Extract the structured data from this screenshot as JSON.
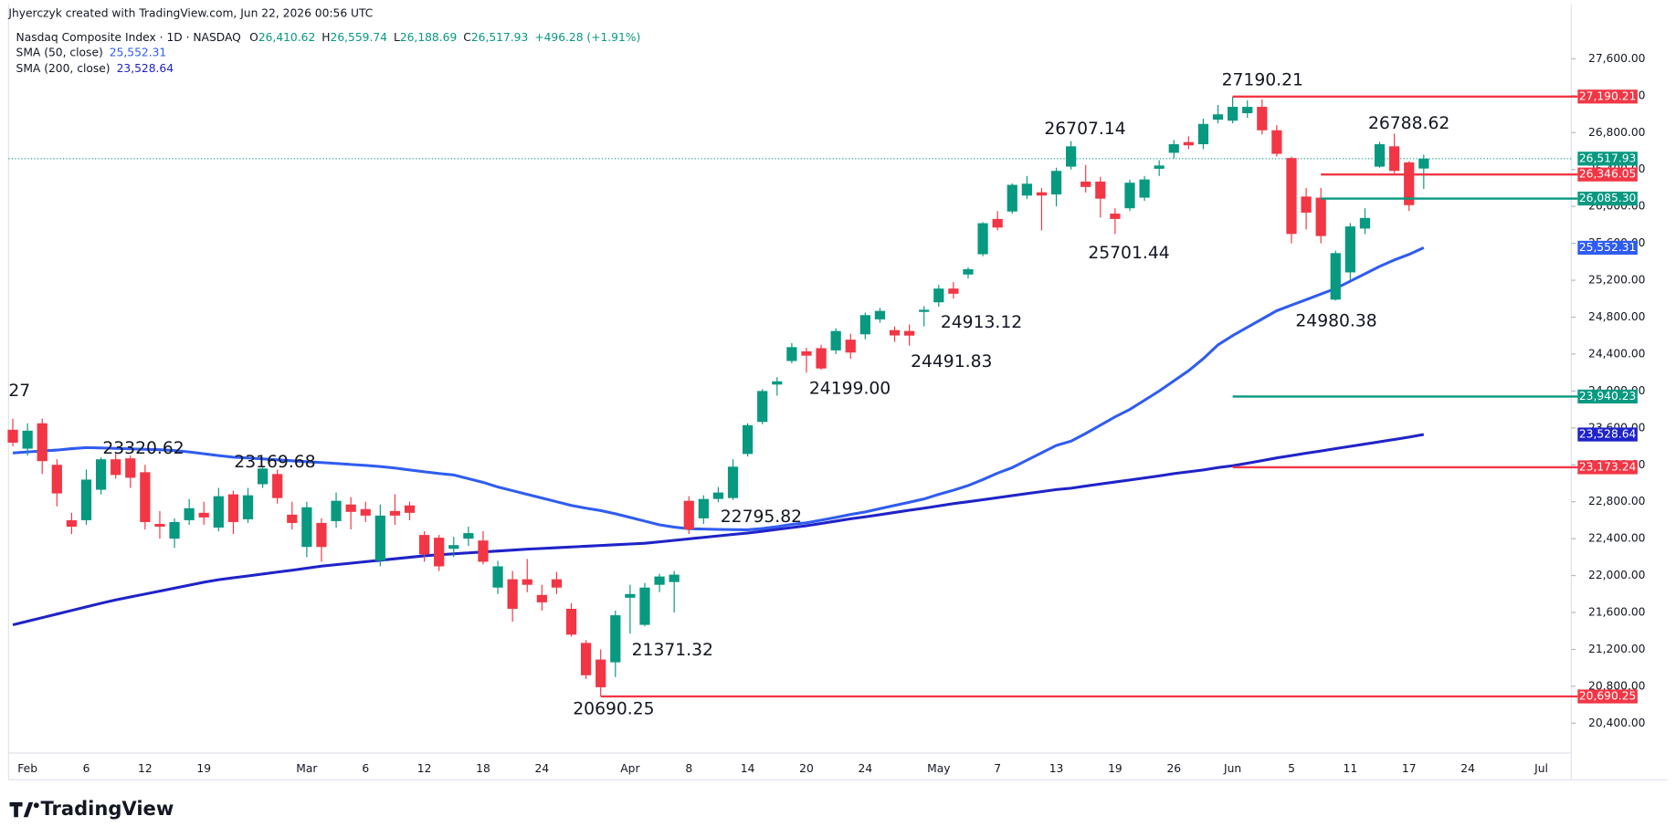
{
  "credit": "Jhyerczyk created with TradingView.com, Jun 22, 2026 00:56 UTC",
  "legend": {
    "symbol": "Nasdaq Composite Index · 1D · NASDAQ",
    "ohlc": [
      {
        "label": "O",
        "value": "26,410.62"
      },
      {
        "label": "H",
        "value": "26,559.74"
      },
      {
        "label": "L",
        "value": "26,188.69"
      },
      {
        "label": "C",
        "value": "26,517.93"
      }
    ],
    "change": "+496.28 (+1.91%)",
    "indicators": [
      {
        "name": "SMA (50, close)",
        "value": "25,552.31"
      },
      {
        "name": "SMA (200, close)",
        "value": "23,528.64"
      }
    ]
  },
  "footer": "TradingView",
  "chart_data": {
    "type": "candlestick",
    "categories": [
      null,
      "Feb",
      null,
      null,
      null,
      "6",
      null,
      null,
      null,
      "12",
      null,
      null,
      null,
      "19",
      null,
      null,
      null,
      null,
      null,
      null,
      "Mar",
      null,
      null,
      null,
      "6",
      null,
      null,
      null,
      "12",
      null,
      null,
      null,
      "18",
      null,
      null,
      null,
      "24",
      null,
      null,
      null,
      null,
      null,
      "Apr",
      null,
      null,
      null,
      "8",
      null,
      null,
      null,
      "14",
      null,
      null,
      null,
      "20",
      null,
      null,
      null,
      "24",
      null,
      null,
      null,
      null,
      "May",
      null,
      null,
      null,
      "7",
      null,
      null,
      null,
      "13",
      null,
      null,
      null,
      "19",
      null,
      null,
      null,
      "26",
      null,
      null,
      null,
      "Jun",
      null,
      null,
      null,
      "5",
      null,
      null,
      null,
      "11",
      null,
      null,
      null,
      "17",
      null,
      null,
      null,
      "24",
      null,
      null,
      null,
      null,
      "Jul"
    ],
    "up_color": "#089981",
    "down_color": "#f23645",
    "open": [
      23580,
      23375,
      23650,
      23200,
      22600,
      22600,
      22930,
      23260,
      23270,
      23120,
      22560,
      22400,
      22600,
      22680,
      22520,
      22880,
      22610,
      22990,
      23100,
      22660,
      22310,
      22570,
      22590,
      22770,
      22720,
      22160,
      22700,
      22760,
      22440,
      22410,
      22290,
      22400,
      22380,
      21870,
      21960,
      21960,
      21790,
      21960,
      21640,
      21270,
      21090,
      21060,
      21760,
      21466,
      21900,
      21930,
      22810,
      22620,
      22830,
      22840,
      23318,
      23665,
      24070,
      24325,
      24430,
      24464,
      24440,
      24556,
      24614,
      24776,
      24660,
      24650,
      24857,
      24961,
      25110,
      25262,
      25482,
      25864,
      25945,
      26118,
      26153,
      26130,
      26431,
      26269,
      26269,
      25922,
      25980,
      26095,
      26408,
      26581,
      26697,
      26674,
      26940,
      26929,
      27010,
      27079,
      26825,
      26524,
      26107,
      26095,
      24990,
      25285,
      25760,
      26431,
      26651,
      26477,
      26410.62,
      null,
      null,
      null,
      null,
      null,
      null,
      null,
      null
    ],
    "high": [
      23700,
      23650,
      23700,
      23260,
      22680,
      23150,
      23280,
      23320.62,
      23300,
      23200,
      22700,
      22620,
      22830,
      22800,
      22950,
      22920,
      22950,
      23169.68,
      23150,
      22800,
      22800,
      22620,
      22900,
      22850,
      22800,
      22770,
      22880,
      22800,
      22480,
      22440,
      22420,
      22530,
      22480,
      22160,
      22050,
      22180,
      21900,
      22040,
      21700,
      21300,
      21200,
      21620,
      21900,
      21920,
      22020,
      22050,
      22860,
      22870,
      22960,
      23260,
      23650,
      24020,
      24150,
      24520,
      24470,
      24500,
      24680,
      24620,
      24850,
      24900,
      24700,
      24720,
      24920,
      25150,
      25180,
      25340,
      25830,
      25950,
      26250,
      26330,
      26200,
      26420,
      26707.14,
      26450,
      26320,
      25980,
      26290,
      26330,
      26500,
      26720,
      26760,
      26950,
      27100,
      27190.21,
      27150,
      27160,
      26880,
      26540,
      26200,
      26200,
      25520,
      25820,
      25980,
      26700,
      26788.62,
      26490,
      26559.74,
      null,
      null,
      null,
      null,
      null,
      null,
      null,
      null
    ],
    "low": [
      23400,
      23300,
      23100,
      22750,
      22450,
      22550,
      22880,
      23050,
      22950,
      22500,
      22400,
      22300,
      22550,
      22550,
      22480,
      22450,
      22570,
      22950,
      22780,
      22500,
      22200,
      22150,
      22520,
      22500,
      22580,
      22100,
      22550,
      22600,
      22150,
      22050,
      22200,
      22320,
      22120,
      21800,
      21500,
      21820,
      21620,
      21800,
      21340,
      20880,
      20690.25,
      20900,
      21371.32,
      21450,
      21820,
      21600,
      22450,
      22560,
      22795.82,
      22820,
      23290,
      23640,
      23950,
      24300,
      24199,
      24230,
      24400,
      24350,
      24560,
      24740,
      24530,
      24491.83,
      24700,
      24913.12,
      25000,
      25220,
      25460,
      25740,
      25920,
      26080,
      25740,
      26000,
      26400,
      26150,
      25880,
      25701.44,
      25950,
      26060,
      26330,
      26520,
      26620,
      26620,
      26900,
      26900,
      26960,
      26780,
      26540,
      25600,
      25750,
      25600,
      24980.38,
      25200,
      25700,
      26420,
      26360,
      25950,
      26188.69,
      null,
      null,
      null,
      null,
      null,
      null,
      null,
      null
    ],
    "close": [
      23440,
      23570,
      23240,
      22890,
      22530,
      23040,
      23260,
      23090,
      23060,
      22580,
      22530,
      22580,
      22730,
      22630,
      22860,
      22580,
      22870,
      23160,
      22840,
      22570,
      22740,
      22310,
      22810,
      22690,
      22650,
      22650,
      22650,
      22680,
      22230,
      22100,
      22330,
      22460,
      22150,
      22100,
      21640,
      21900,
      21710,
      21870,
      21360,
      20920,
      20790,
      21570,
      21800,
      21870,
      21990,
      22010,
      22500,
      22830,
      22900,
      23180,
      23630,
      24000,
      24105,
      24475,
      24383,
      24244,
      24650,
      24417,
      24822,
      24868,
      24602,
      24600,
      24880,
      25110,
      25054,
      25320,
      25818,
      25771,
      26234,
      26246,
      26118,
      26385,
      26651,
      26211,
      26084,
      25864,
      26257,
      26292,
      26443,
      26674,
      26662,
      26894,
      26998,
      27079,
      27079,
      26825,
      26570,
      25702,
      25933,
      25679,
      25494,
      25783,
      25875,
      26674,
      26385,
      26014,
      26517.93,
      null,
      null,
      null,
      null,
      null,
      null,
      null,
      null
    ],
    "series": [
      {
        "name": "SMA (50, close)",
        "color": "#2f5cf0",
        "label": "25,552.31",
        "values": [
          23329,
          23340,
          23350,
          23360,
          23375,
          23387,
          23383,
          23378,
          23373,
          23368,
          23364,
          23355,
          23340,
          23320,
          23300,
          23283,
          23274,
          23264,
          23254,
          23244,
          23234,
          23225,
          23215,
          23204,
          23194,
          23182,
          23165,
          23145,
          23125,
          23106,
          23090,
          23050,
          23010,
          22960,
          22920,
          22880,
          22840,
          22800,
          22760,
          22730,
          22704,
          22670,
          22630,
          22590,
          22550,
          22525,
          22508,
          22504,
          22500,
          22498,
          22496,
          22510,
          22530,
          22555,
          22572,
          22600,
          22630,
          22662,
          22690,
          22725,
          22760,
          22795,
          22830,
          22880,
          22925,
          22975,
          23040,
          23110,
          23170,
          23250,
          23330,
          23410,
          23456,
          23540,
          23630,
          23720,
          23800,
          23900,
          24000,
          24110,
          24220,
          24350,
          24500,
          24600,
          24690,
          24780,
          24870,
          24930,
          24990,
          25050,
          25110,
          25190,
          25270,
          25350,
          25420,
          25480,
          25552.31,
          null,
          null,
          null,
          null,
          null,
          null,
          null,
          null
        ]
      },
      {
        "name": "SMA (200, close)",
        "color": "#1f23c8",
        "label": "23,528.64",
        "values": [
          21466,
          21505,
          21544,
          21583,
          21622,
          21661,
          21700,
          21736,
          21768,
          21800,
          21832,
          21864,
          21896,
          21928,
          21955,
          21976,
          21996,
          22017,
          22038,
          22058,
          22080,
          22102,
          22118,
          22134,
          22150,
          22166,
          22182,
          22198,
          22214,
          22226,
          22236,
          22246,
          22256,
          22266,
          22276,
          22286,
          22294,
          22302,
          22310,
          22318,
          22326,
          22334,
          22342,
          22350,
          22366,
          22382,
          22398,
          22414,
          22430,
          22446,
          22461,
          22480,
          22500,
          22520,
          22540,
          22565,
          22590,
          22615,
          22636,
          22660,
          22684,
          22708,
          22730,
          22755,
          22780,
          22800,
          22822,
          22844,
          22866,
          22888,
          22910,
          22932,
          22947,
          22970,
          22992,
          23014,
          23036,
          23058,
          23080,
          23105,
          23125,
          23145,
          23170,
          23190,
          23218,
          23246,
          23275,
          23300,
          23326,
          23350,
          23375,
          23400,
          23425,
          23450,
          23475,
          23500,
          23528.64,
          null,
          null,
          null,
          null,
          null,
          null,
          null,
          null
        ]
      }
    ],
    "last_price": {
      "value": 26517.93,
      "label": "26,517.93",
      "color": "#089981"
    },
    "levels": [
      {
        "value": 27190.21,
        "label": "27,190.21",
        "color": "#f23645"
      },
      {
        "value": 26346.05,
        "label": "26,346.05",
        "color": "#f23645"
      },
      {
        "value": 26085.3,
        "label": "26,085.30",
        "color": "#089981"
      },
      {
        "value": 23940.23,
        "label": "23,940.23",
        "color": "#089981"
      },
      {
        "value": 23173.24,
        "label": "23,173.24",
        "color": "#f23645"
      },
      {
        "value": 20690.25,
        "label": "20,690.25",
        "color": "#f23645"
      }
    ],
    "annotations": [
      "27",
      "23320.62",
      "23169.68",
      "22795.82",
      "21371.32",
      "20690.25",
      "24199.00",
      "24491.83",
      "24913.12",
      "26707.14",
      "25701.44",
      "27190.21",
      "26788.62",
      "24980.38"
    ],
    "ylim": [
      20077,
      28121
    ],
    "yticks": [
      {
        "value": 20400,
        "label": "20,400.00"
      },
      {
        "value": 20800,
        "label": "20,800.00"
      },
      {
        "value": 21200,
        "label": "21,200.00"
      },
      {
        "value": 21600,
        "label": "21,600.00"
      },
      {
        "value": 22000,
        "label": "22,000.00"
      },
      {
        "value": 22400,
        "label": "22,400.00"
      },
      {
        "value": 22800,
        "label": "22,800.00"
      },
      {
        "value": 23200,
        "label": "23,200.00"
      },
      {
        "value": 23600,
        "label": "23,600.00"
      },
      {
        "value": 24000,
        "label": "24,000.00"
      },
      {
        "value": 24400,
        "label": "24,400.00"
      },
      {
        "value": 24800,
        "label": "24,800.00"
      },
      {
        "value": 25200,
        "label": "25,200.00"
      },
      {
        "value": 25600,
        "label": "25,600.00"
      },
      {
        "value": 26000,
        "label": "26,000.00"
      },
      {
        "value": 26400,
        "label": "26,400.00"
      },
      {
        "value": 26800,
        "label": "26,800.00"
      },
      {
        "value": 27200,
        "label": "27,200.00"
      },
      {
        "value": 27600,
        "label": "27,600.00"
      }
    ],
    "grid": false
  }
}
